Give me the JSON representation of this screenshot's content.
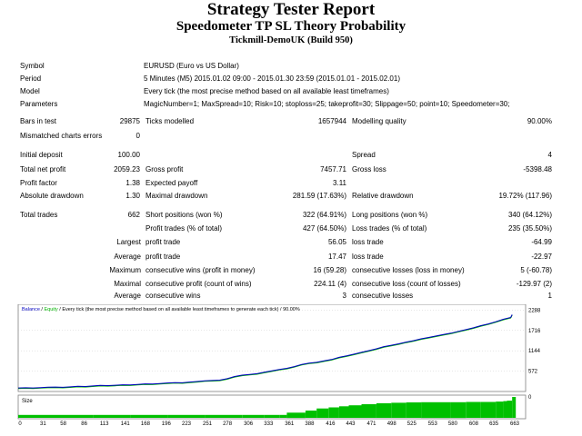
{
  "header": {
    "title": "Strategy Tester Report",
    "expert": "Speedometer TP SL Theory Probability",
    "server": "Tickmill-DemoUK (Build 950)"
  },
  "settings": [
    {
      "label": "Symbol",
      "value": "EURUSD (Euro vs US Dollar)"
    },
    {
      "label": "Period",
      "value": "5 Minutes (M5) 2015.01.02 09:00 - 2015.01.30 23:59 (2015.01.01 - 2015.02.01)"
    },
    {
      "label": "Model",
      "value": "Every tick (the most precise method based on all available least timeframes)"
    },
    {
      "label": "Parameters",
      "value": "MagicNumber=1; MaxSpread=10; Risk=10; stoploss=25; takeprofit=30; Slippage=50; point=10; Speedometer=30;"
    }
  ],
  "rows": [
    {
      "c1": "Bars in test",
      "c2": "29875",
      "c3": "Ticks modelled",
      "c4": "1657944",
      "c5": "Modelling quality",
      "c6": "90.00%"
    },
    {
      "c1": "Mismatched charts errors",
      "c2": "0",
      "c3": "",
      "c4": "",
      "c5": "",
      "c6": ""
    },
    {
      "c1": "Initial deposit",
      "c2": "100.00",
      "c3": "",
      "c4": "",
      "c5": "Spread",
      "c6": "4"
    },
    {
      "c1": "Total net profit",
      "c2": "2059.23",
      "c3": "Gross profit",
      "c4": "7457.71",
      "c5": "Gross loss",
      "c6": "-5398.48"
    },
    {
      "c1": "Profit factor",
      "c2": "1.38",
      "c3": "Expected payoff",
      "c4": "3.11",
      "c5": "",
      "c6": ""
    },
    {
      "c1": "Absolute drawdown",
      "c2": "1.30",
      "c3": "Maximal drawdown",
      "c4": "281.59 (17.63%)",
      "c5": "Relative drawdown",
      "c6": "19.72% (117.96)"
    },
    {
      "c1": "Total trades",
      "c2": "662",
      "c3": "Short positions (won %)",
      "c4": "322 (64.91%)",
      "c5": "Long positions (won %)",
      "c6": "340 (64.12%)"
    },
    {
      "c1": "",
      "c2": "",
      "c3": "Profit trades (% of total)",
      "c4": "427 (64.50%)",
      "c5": "Loss trades (% of total)",
      "c6": "235 (35.50%)"
    }
  ],
  "subrows": [
    {
      "prefix": "Largest",
      "c3": "profit trade",
      "c4": "56.05",
      "c5": "loss trade",
      "c6": "-64.99"
    },
    {
      "prefix": "Average",
      "c3": "profit trade",
      "c4": "17.47",
      "c5": "loss trade",
      "c6": "-22.97"
    },
    {
      "prefix": "Maximum",
      "c3": "consecutive wins (profit in money)",
      "c4": "16 (59.28)",
      "c5": "consecutive losses (loss in money)",
      "c6": "5 (-60.78)"
    },
    {
      "prefix": "Maximal",
      "c3": "consecutive profit (count of wins)",
      "c4": "224.11 (4)",
      "c5": "consecutive loss (count of losses)",
      "c6": "-129.97 (2)"
    },
    {
      "prefix": "Average",
      "c3": "consecutive wins",
      "c4": "3",
      "c5": "consecutive losses",
      "c6": "1"
    }
  ],
  "chart_data": {
    "type": "line",
    "legend_balance": "Balance",
    "legend_sep": " / ",
    "legend_equity": "Equity",
    "legend_rest": " / Every tick (the most precise method based on all available least timeframes to generate each tick) / 90.00%",
    "size_label": "Size",
    "y_ticks": [
      572,
      1144,
      1716,
      2288
    ],
    "ylim": [
      0,
      2400
    ],
    "xlim": [
      0,
      680
    ],
    "x_ticks": [
      0,
      31,
      58,
      86,
      113,
      141,
      168,
      196,
      223,
      251,
      278,
      306,
      333,
      361,
      388,
      416,
      443,
      471,
      498,
      525,
      553,
      580,
      608,
      635,
      663
    ],
    "balance_color": "#0000c0",
    "equity_color": "#00b400",
    "size_color": "#00c000",
    "balance": {
      "x": [
        0,
        10,
        20,
        30,
        40,
        50,
        60,
        70,
        80,
        90,
        100,
        110,
        120,
        130,
        140,
        150,
        160,
        170,
        180,
        190,
        200,
        210,
        220,
        230,
        240,
        250,
        260,
        270,
        280,
        290,
        300,
        310,
        320,
        330,
        340,
        350,
        360,
        370,
        380,
        390,
        400,
        410,
        420,
        430,
        440,
        450,
        460,
        470,
        480,
        490,
        500,
        510,
        520,
        530,
        540,
        550,
        560,
        570,
        580,
        590,
        600,
        610,
        620,
        630,
        640,
        650,
        660,
        662
      ],
      "y": [
        100,
        105,
        100,
        110,
        120,
        125,
        118,
        130,
        145,
        140,
        155,
        170,
        165,
        175,
        190,
        185,
        200,
        215,
        210,
        225,
        240,
        250,
        245,
        265,
        280,
        300,
        310,
        320,
        360,
        420,
        460,
        480,
        500,
        540,
        580,
        620,
        650,
        700,
        760,
        800,
        820,
        860,
        900,
        960,
        1000,
        1050,
        1100,
        1150,
        1200,
        1260,
        1300,
        1340,
        1390,
        1430,
        1480,
        1520,
        1560,
        1600,
        1640,
        1690,
        1740,
        1790,
        1850,
        1900,
        1960,
        2030,
        2080,
        2159
      ]
    },
    "size": {
      "x": [
        0,
        50,
        100,
        150,
        200,
        250,
        300,
        330,
        350,
        360,
        385,
        400,
        416,
        430,
        443,
        460,
        480,
        500,
        520,
        540,
        560,
        580,
        600,
        620,
        640,
        650,
        655,
        662
      ],
      "y": [
        0.14,
        0.14,
        0.14,
        0.14,
        0.14,
        0.14,
        0.14,
        0.14,
        0.14,
        0.25,
        0.35,
        0.45,
        0.5,
        0.55,
        0.6,
        0.65,
        0.7,
        0.72,
        0.74,
        0.75,
        0.75,
        0.75,
        0.76,
        0.76,
        0.78,
        0.8,
        0.82,
        1.0
      ]
    }
  }
}
